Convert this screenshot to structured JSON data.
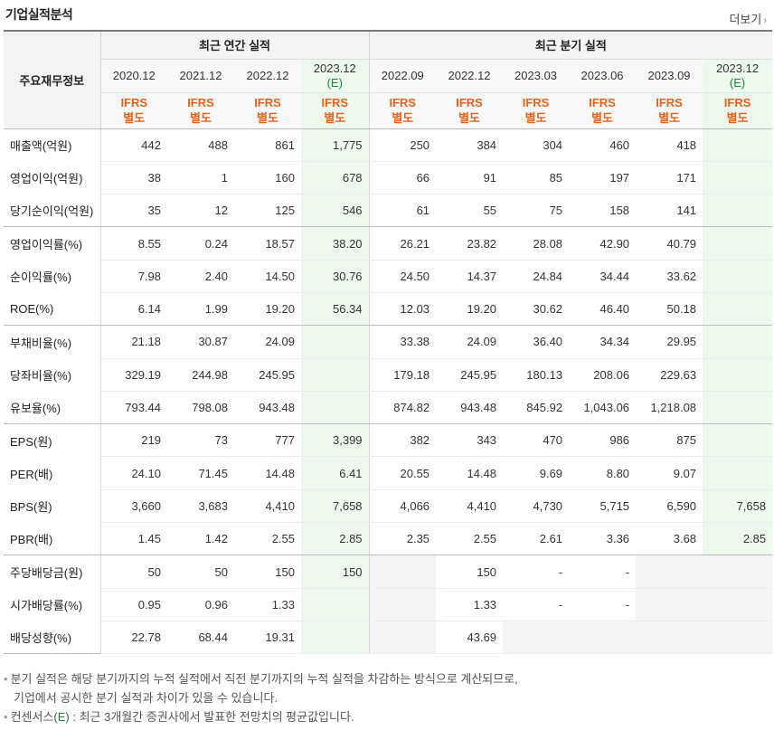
{
  "header": {
    "title": "기업실적분석",
    "more_label": "더보기",
    "more_icon": "chevron-right-icon"
  },
  "table": {
    "row_header": "주요재무정보",
    "group_annual": "최근 연간 실적",
    "group_quarterly": "최근 분기 실적",
    "ifrs_line1": "IFRS",
    "ifrs_line2": "별도",
    "est_mark": "(E)",
    "periods": [
      {
        "label": "2020.12",
        "est": false
      },
      {
        "label": "2021.12",
        "est": false
      },
      {
        "label": "2022.12",
        "est": false
      },
      {
        "label": "2023.12",
        "est": true
      },
      {
        "label": "2022.09",
        "est": false
      },
      {
        "label": "2022.12",
        "est": false
      },
      {
        "label": "2023.03",
        "est": false
      },
      {
        "label": "2023.06",
        "est": false
      },
      {
        "label": "2023.09",
        "est": false
      },
      {
        "label": "2023.12",
        "est": true
      }
    ],
    "rows": [
      {
        "label": "매출액(억원)",
        "values": [
          "442",
          "488",
          "861",
          "1,775",
          "250",
          "384",
          "304",
          "460",
          "418",
          ""
        ]
      },
      {
        "label": "영업이익(억원)",
        "values": [
          "38",
          "1",
          "160",
          "678",
          "66",
          "91",
          "85",
          "197",
          "171",
          ""
        ]
      },
      {
        "label": "당기순이익(억원)",
        "values": [
          "35",
          "12",
          "125",
          "546",
          "61",
          "55",
          "75",
          "158",
          "141",
          ""
        ]
      },
      {
        "label": "영업이익률(%)",
        "values": [
          "8.55",
          "0.24",
          "18.57",
          "38.20",
          "26.21",
          "23.82",
          "28.08",
          "42.90",
          "40.79",
          ""
        ]
      },
      {
        "label": "순이익률(%)",
        "values": [
          "7.98",
          "2.40",
          "14.50",
          "30.76",
          "24.50",
          "14.37",
          "24.84",
          "34.44",
          "33.62",
          ""
        ]
      },
      {
        "label": "ROE(%)",
        "values": [
          "6.14",
          "1.99",
          "19.20",
          "56.34",
          "12.03",
          "19.20",
          "30.62",
          "46.40",
          "50.18",
          ""
        ]
      },
      {
        "label": "부채비율(%)",
        "values": [
          "21.18",
          "30.87",
          "24.09",
          "",
          "33.38",
          "24.09",
          "36.40",
          "34.34",
          "29.95",
          ""
        ]
      },
      {
        "label": "당좌비율(%)",
        "values": [
          "329.19",
          "244.98",
          "245.95",
          "",
          "179.18",
          "245.95",
          "180.13",
          "208.06",
          "229.63",
          ""
        ]
      },
      {
        "label": "유보율(%)",
        "values": [
          "793.44",
          "798.08",
          "943.48",
          "",
          "874.82",
          "943.48",
          "845.92",
          "1,043.06",
          "1,218.08",
          ""
        ]
      },
      {
        "label": "EPS(원)",
        "values": [
          "219",
          "73",
          "777",
          "3,399",
          "382",
          "343",
          "470",
          "986",
          "875",
          ""
        ]
      },
      {
        "label": "PER(배)",
        "values": [
          "24.10",
          "71.45",
          "14.48",
          "6.41",
          "20.55",
          "14.48",
          "9.69",
          "8.80",
          "9.07",
          ""
        ]
      },
      {
        "label": "BPS(원)",
        "values": [
          "3,660",
          "3,683",
          "4,410",
          "7,658",
          "4,066",
          "4,410",
          "4,730",
          "5,715",
          "6,590",
          "7,658"
        ]
      },
      {
        "label": "PBR(배)",
        "values": [
          "1.45",
          "1.42",
          "2.55",
          "2.85",
          "2.35",
          "2.55",
          "2.61",
          "3.36",
          "3.68",
          "2.85"
        ]
      },
      {
        "label": "주당배당금(원)",
        "values": [
          "50",
          "50",
          "150",
          "150",
          "",
          "150",
          "-",
          "-",
          "",
          ""
        ]
      },
      {
        "label": "시가배당률(%)",
        "values": [
          "0.95",
          "0.96",
          "1.33",
          "",
          "",
          "1.33",
          "-",
          "-",
          "",
          ""
        ]
      },
      {
        "label": "배당성향(%)",
        "values": [
          "22.78",
          "68.44",
          "19.31",
          "",
          "",
          "43.69",
          "",
          "",
          "",
          ""
        ]
      }
    ]
  },
  "notes": {
    "line1": "분기 실적은 해당 분기까지의 누적 실적에서 직전 분기까지의 누적 실적을 차감하는 방식으로 계산되므로,",
    "line2": "기업에서 공시한 분기 실적과 차이가 있을 수 있습니다.",
    "line3_prefix": "컨센서스(",
    "line3_e": "E",
    "line3_suffix": ") : 최근 3개월간 증권사에서 발표한 전망치의 평균값입니다."
  }
}
